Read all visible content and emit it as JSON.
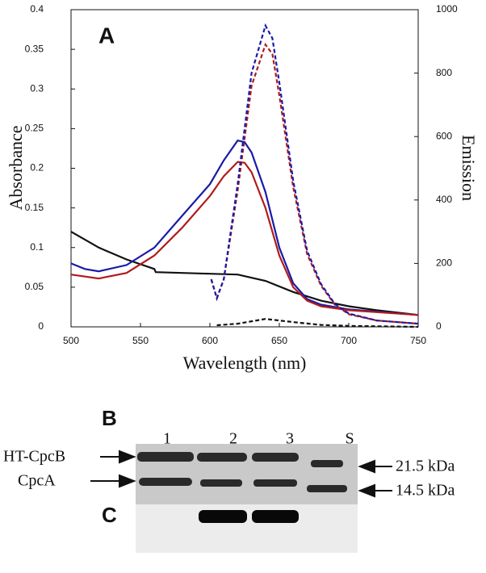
{
  "chart_data": {
    "type": "line",
    "annotation": "A",
    "xlabel": "Wavelength (nm)",
    "ylabel": "Absorbance",
    "y2label": "Emission",
    "xlim": [
      500,
      750
    ],
    "xticks": [
      500,
      550,
      600,
      650,
      700,
      750
    ],
    "ylim": [
      0,
      0.4
    ],
    "yticks": [
      0,
      0.05,
      0.1,
      0.15,
      0.2,
      0.25,
      0.3,
      0.35,
      0.4
    ],
    "y2lim": [
      0,
      1000
    ],
    "y2ticks": [
      0,
      200,
      400,
      600,
      800,
      1000
    ],
    "series": [
      {
        "color": "#111111",
        "dashed": false,
        "axis": "y",
        "x": [
          500,
          520,
          540,
          560,
          561,
          580,
          600,
          620,
          640,
          660,
          680,
          700,
          720,
          750
        ],
        "values": [
          0.12,
          0.1,
          0.085,
          0.073,
          0.069,
          0.068,
          0.067,
          0.066,
          0.058,
          0.044,
          0.033,
          0.026,
          0.021,
          0.015
        ]
      },
      {
        "color": "#1a1aa8",
        "dashed": false,
        "axis": "y",
        "x": [
          500,
          510,
          520,
          540,
          560,
          580,
          600,
          610,
          620,
          625,
          630,
          640,
          650,
          660,
          670,
          680,
          700,
          750
        ],
        "values": [
          0.08,
          0.073,
          0.07,
          0.078,
          0.1,
          0.14,
          0.18,
          0.21,
          0.235,
          0.233,
          0.22,
          0.17,
          0.1,
          0.055,
          0.035,
          0.028,
          0.022,
          0.015
        ]
      },
      {
        "color": "#b01c1c",
        "dashed": false,
        "axis": "y",
        "x": [
          500,
          520,
          540,
          560,
          580,
          600,
          610,
          620,
          625,
          630,
          640,
          650,
          660,
          670,
          680,
          700,
          750
        ],
        "values": [
          0.066,
          0.061,
          0.068,
          0.09,
          0.125,
          0.165,
          0.19,
          0.208,
          0.207,
          0.195,
          0.15,
          0.09,
          0.05,
          0.033,
          0.026,
          0.021,
          0.015
        ]
      },
      {
        "color": "#b01c1c",
        "dashed": true,
        "axis": "y2",
        "x": [
          601,
          605,
          610,
          620,
          630,
          640,
          645,
          650,
          660,
          670,
          680,
          690,
          700,
          720,
          750
        ],
        "values": [
          150,
          90,
          150,
          430,
          760,
          890,
          860,
          730,
          440,
          230,
          130,
          70,
          40,
          20,
          10
        ]
      },
      {
        "color": "#1a1aa8",
        "dashed": true,
        "axis": "y2",
        "x": [
          601,
          605,
          610,
          620,
          630,
          640,
          645,
          650,
          660,
          670,
          680,
          690,
          700,
          720,
          750
        ],
        "values": [
          150,
          90,
          150,
          450,
          800,
          950,
          910,
          770,
          460,
          240,
          135,
          72,
          42,
          20,
          10
        ]
      },
      {
        "color": "#111111",
        "dashed": true,
        "axis": "y2",
        "x": [
          605,
          620,
          640,
          660,
          680,
          700,
          750
        ],
        "values": [
          5,
          10,
          25,
          15,
          6,
          3,
          0
        ]
      }
    ]
  },
  "gel": {
    "panel_b": "B",
    "panel_c": "C",
    "lanes": [
      "1",
      "2",
      "3",
      "S"
    ],
    "left_labels": [
      "HT-CpcB",
      "CpcA"
    ],
    "right_labels": [
      "21.5 kDa",
      "14.5 kDa"
    ]
  }
}
